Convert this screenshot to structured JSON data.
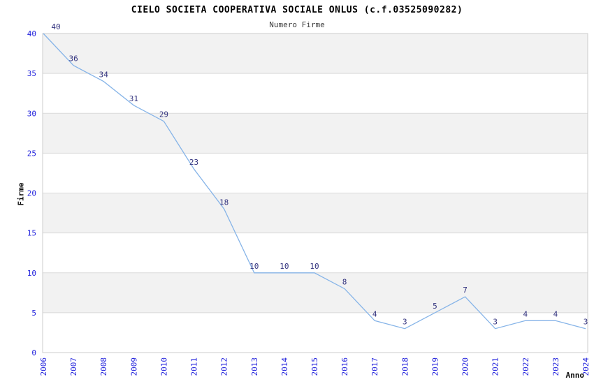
{
  "chart": {
    "title": "CIELO SOCIETA COOPERATIVA SOCIALE ONLUS (c.f.03525090282)",
    "subtitle": "Numero Firme",
    "y_axis_title": "Firme",
    "x_axis_title": "Anno"
  },
  "chart_data": {
    "type": "line",
    "title": "CIELO SOCIETA COOPERATIVA SOCIALE ONLUS (c.f.03525090282)",
    "subtitle": "Numero Firme",
    "xlabel": "Anno",
    "ylabel": "Firme",
    "categories": [
      "2006",
      "2007",
      "2008",
      "2009",
      "2010",
      "2011",
      "2012",
      "2013",
      "2014",
      "2015",
      "2016",
      "2017",
      "2018",
      "2019",
      "2020",
      "2021",
      "2022",
      "2023",
      "2024"
    ],
    "values": [
      40,
      36,
      34,
      31,
      29,
      23,
      18,
      10,
      10,
      10,
      8,
      4,
      3,
      5,
      7,
      3,
      4,
      4,
      3
    ],
    "point_labels": [
      "40",
      "36",
      "34",
      "31",
      "29",
      "23",
      "18",
      "10",
      "10",
      "10",
      "8",
      "4",
      "3",
      "5",
      "7",
      "3",
      "4",
      "4",
      "3"
    ],
    "ylim": [
      0,
      40
    ],
    "ytick_step": 5,
    "yticks": [
      0,
      5,
      10,
      15,
      20,
      25,
      30,
      35,
      40
    ],
    "grid": true,
    "band_fill": "alternating horizontal bands, gray on 5-10/15-20/25-30/35-40",
    "legend": "none",
    "colors": {
      "line": "#86b4e8",
      "point_label": "#32327e",
      "tick_label": "#2525dd",
      "grid_line": "#d9d9d9",
      "band_gray": "#f2f2f2",
      "band_white": "#ffffff",
      "plot_border": "#cccccc",
      "title": "#000000",
      "subtitle": "#3c3c3c",
      "axis_title": "#111111",
      "background": "#ffffff"
    }
  }
}
